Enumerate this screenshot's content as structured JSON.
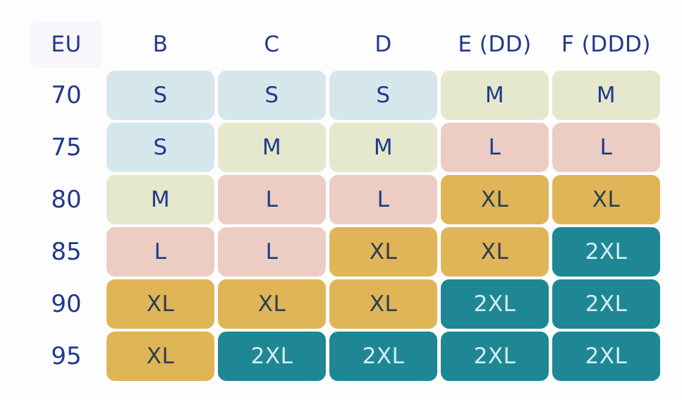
{
  "chart_data": {
    "type": "table",
    "title": "",
    "columns": [
      "EU",
      "B",
      "C",
      "D",
      "E (DD)",
      "F (DDD)"
    ],
    "rows": [
      {
        "eu": "70",
        "sizes": [
          "S",
          "S",
          "S",
          "M",
          "M"
        ]
      },
      {
        "eu": "75",
        "sizes": [
          "S",
          "M",
          "M",
          "L",
          "L"
        ]
      },
      {
        "eu": "80",
        "sizes": [
          "M",
          "L",
          "L",
          "XL",
          "XL"
        ]
      },
      {
        "eu": "85",
        "sizes": [
          "L",
          "L",
          "XL",
          "XL",
          "2XL"
        ]
      },
      {
        "eu": "90",
        "sizes": [
          "XL",
          "XL",
          "XL",
          "2XL",
          "2XL"
        ]
      },
      {
        "eu": "95",
        "sizes": [
          "XL",
          "2XL",
          "2XL",
          "2XL",
          "2XL"
        ]
      }
    ],
    "size_legend": [
      "S",
      "M",
      "L",
      "XL",
      "2XL"
    ]
  },
  "colors": {
    "css_vars": {
      "page-bg": "#fdfdfe",
      "eu-bg": "#f8f6fa",
      "navy": "#21398b",
      "c-s": "#d6e7ec",
      "c-m": "#e6e8ce",
      "c-l": "#eccdc4",
      "c-xl": "#e0b557",
      "c-2xl": "#1f8794",
      "t-xl": "#2d3e50",
      "t-2xl": "#d5edf1"
    }
  }
}
